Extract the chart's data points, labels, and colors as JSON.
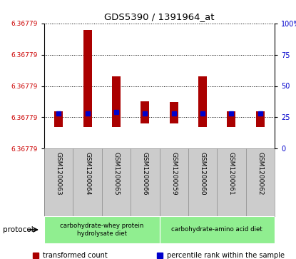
{
  "title": "GDS5390 / 1391964_at",
  "samples": [
    "GSM1200063",
    "GSM1200064",
    "GSM1200065",
    "GSM1200066",
    "GSM1200059",
    "GSM1200060",
    "GSM1200061",
    "GSM1200062"
  ],
  "ytick_labels": [
    "6.36779",
    "6.36779",
    "6.36779",
    "6.36779",
    "6.36779"
  ],
  "ytick_values": [
    0.0,
    0.25,
    0.5,
    0.75,
    1.0
  ],
  "right_ytick_labels": [
    "0",
    "25",
    "50",
    "75",
    "100%"
  ],
  "right_ytick_pcts": [
    0.0,
    0.25,
    0.5,
    0.75,
    1.0
  ],
  "bar_low": [
    0.17,
    0.17,
    0.17,
    0.2,
    0.2,
    0.17,
    0.17,
    0.17
  ],
  "bar_high": [
    0.3,
    0.95,
    0.58,
    0.38,
    0.37,
    0.58,
    0.3,
    0.3
  ],
  "blue_pcts": [
    0.28,
    0.28,
    0.29,
    0.28,
    0.28,
    0.28,
    0.28,
    0.28
  ],
  "bar_color": "#aa0000",
  "dot_color": "#0000cc",
  "protocol_groups": [
    {
      "label": "carbohydrate-whey protein\nhydrolysate diet",
      "start": 0,
      "end": 4,
      "color": "#90ee90"
    },
    {
      "label": "carbohydrate-amino acid diet",
      "start": 4,
      "end": 8,
      "color": "#90ee90"
    }
  ],
  "protocol_label": "protocol",
  "legend_items": [
    {
      "color": "#aa0000",
      "label": "transformed count"
    },
    {
      "color": "#0000cc",
      "label": "percentile rank within the sample"
    }
  ],
  "bg_color": "#ffffff",
  "left_label_color": "#cc0000",
  "right_label_color": "#0000cc"
}
